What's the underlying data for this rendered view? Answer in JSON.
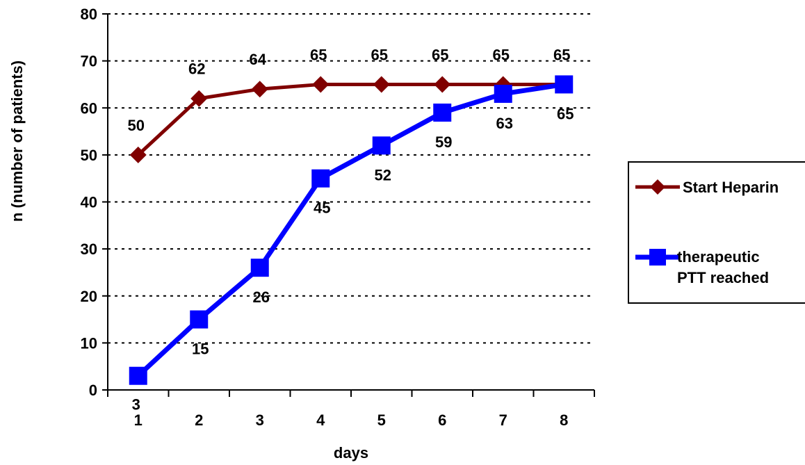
{
  "chart_data": {
    "type": "line",
    "title": "",
    "xlabel": "days",
    "ylabel": "n (number of patients)",
    "x": [
      1,
      2,
      3,
      4,
      5,
      6,
      7,
      8
    ],
    "ylim": [
      0,
      80
    ],
    "yticks": [
      0,
      10,
      20,
      30,
      40,
      50,
      60,
      70,
      80
    ],
    "grid": "horizontal dotted",
    "legend_position": "right",
    "series": [
      {
        "name": "Start Heparin",
        "values": [
          50,
          62,
          64,
          65,
          65,
          65,
          65,
          65
        ],
        "color": "#800000",
        "marker": "diamond"
      },
      {
        "name_lines": [
          "therapeutic",
          "PTT reached"
        ],
        "values": [
          3,
          15,
          26,
          45,
          52,
          59,
          63,
          65
        ],
        "color": "#0000ff",
        "marker": "square"
      }
    ]
  }
}
